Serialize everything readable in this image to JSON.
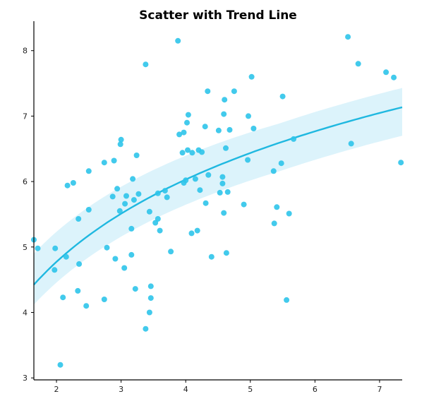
{
  "chart_data": {
    "type": "scatter",
    "title": "Scatter with Trend Line",
    "xlabel": "",
    "ylabel": "",
    "xlim": [
      1.65,
      7.35
    ],
    "ylim": [
      2.97,
      8.45
    ],
    "xticks": [
      "2",
      "3",
      "4",
      "5",
      "6",
      "7"
    ],
    "yticks": [
      "3",
      "4",
      "5",
      "6",
      "7",
      "8"
    ],
    "grid": false,
    "colors": {
      "points": "#2ec4ea",
      "trend": "#1fb8e0",
      "band": "#dcf3fb"
    },
    "points": [
      [
        1.65,
        5.11
      ],
      [
        1.71,
        4.98
      ],
      [
        1.98,
        4.98
      ],
      [
        1.97,
        4.65
      ],
      [
        2.06,
        3.2
      ],
      [
        2.1,
        4.23
      ],
      [
        2.15,
        4.85
      ],
      [
        2.17,
        5.94
      ],
      [
        2.26,
        5.98
      ],
      [
        2.33,
        4.33
      ],
      [
        2.35,
        4.74
      ],
      [
        2.34,
        5.43
      ],
      [
        2.46,
        4.1
      ],
      [
        2.5,
        5.57
      ],
      [
        2.5,
        6.16
      ],
      [
        2.74,
        4.2
      ],
      [
        2.74,
        6.29
      ],
      [
        2.78,
        4.99
      ],
      [
        2.87,
        5.77
      ],
      [
        2.89,
        6.32
      ],
      [
        2.91,
        4.82
      ],
      [
        2.94,
        5.89
      ],
      [
        2.98,
        5.55
      ],
      [
        2.99,
        6.57
      ],
      [
        3.0,
        6.64
      ],
      [
        3.05,
        4.68
      ],
      [
        3.06,
        5.66
      ],
      [
        3.08,
        5.78
      ],
      [
        3.16,
        5.28
      ],
      [
        3.16,
        4.88
      ],
      [
        3.18,
        6.04
      ],
      [
        3.2,
        5.72
      ],
      [
        3.22,
        4.36
      ],
      [
        3.24,
        6.4
      ],
      [
        3.27,
        5.81
      ],
      [
        3.38,
        3.75
      ],
      [
        3.38,
        7.79
      ],
      [
        3.44,
        5.54
      ],
      [
        3.44,
        4.0
      ],
      [
        3.46,
        4.4
      ],
      [
        3.46,
        4.22
      ],
      [
        3.53,
        5.37
      ],
      [
        3.57,
        5.82
      ],
      [
        3.57,
        5.43
      ],
      [
        3.6,
        5.25
      ],
      [
        3.68,
        5.86
      ],
      [
        3.71,
        5.76
      ],
      [
        3.77,
        4.93
      ],
      [
        3.88,
        8.15
      ],
      [
        3.9,
        6.72
      ],
      [
        3.95,
        6.44
      ],
      [
        3.97,
        6.75
      ],
      [
        3.97,
        5.98
      ],
      [
        4.0,
        6.02
      ],
      [
        4.03,
        6.48
      ],
      [
        4.02,
        6.9
      ],
      [
        4.04,
        7.02
      ],
      [
        4.1,
        6.44
      ],
      [
        4.09,
        5.21
      ],
      [
        4.15,
        6.04
      ],
      [
        4.18,
        5.25
      ],
      [
        4.2,
        6.48
      ],
      [
        4.22,
        5.87
      ],
      [
        4.25,
        6.45
      ],
      [
        4.3,
        6.84
      ],
      [
        4.31,
        5.67
      ],
      [
        4.34,
        7.38
      ],
      [
        4.35,
        6.1
      ],
      [
        4.4,
        4.85
      ],
      [
        4.51,
        6.78
      ],
      [
        4.53,
        5.83
      ],
      [
        4.57,
        5.97
      ],
      [
        4.57,
        6.07
      ],
      [
        4.59,
        7.03
      ],
      [
        4.6,
        7.25
      ],
      [
        4.59,
        5.52
      ],
      [
        4.62,
        6.51
      ],
      [
        4.63,
        4.91
      ],
      [
        4.65,
        5.84
      ],
      [
        4.68,
        6.79
      ],
      [
        4.75,
        7.38
      ],
      [
        4.9,
        5.65
      ],
      [
        4.96,
        6.33
      ],
      [
        4.97,
        7.0
      ],
      [
        5.02,
        7.6
      ],
      [
        5.05,
        6.81
      ],
      [
        5.36,
        6.16
      ],
      [
        5.37,
        5.36
      ],
      [
        5.41,
        5.61
      ],
      [
        5.48,
        6.28
      ],
      [
        5.5,
        7.3
      ],
      [
        5.56,
        4.19
      ],
      [
        5.6,
        5.51
      ],
      [
        5.67,
        6.65
      ],
      [
        6.51,
        8.21
      ],
      [
        6.56,
        6.58
      ],
      [
        6.67,
        7.8
      ],
      [
        7.1,
        7.67
      ],
      [
        7.22,
        7.59
      ],
      [
        7.33,
        6.29
      ]
    ],
    "trend": {
      "model": "logarithmic",
      "a": 3.515,
      "b": 1.815,
      "band_lo_at_min": 4.12,
      "band_hi_at_min": 4.9,
      "band_lo_at_max": 6.7,
      "band_hi_at_max": 7.43
    }
  }
}
